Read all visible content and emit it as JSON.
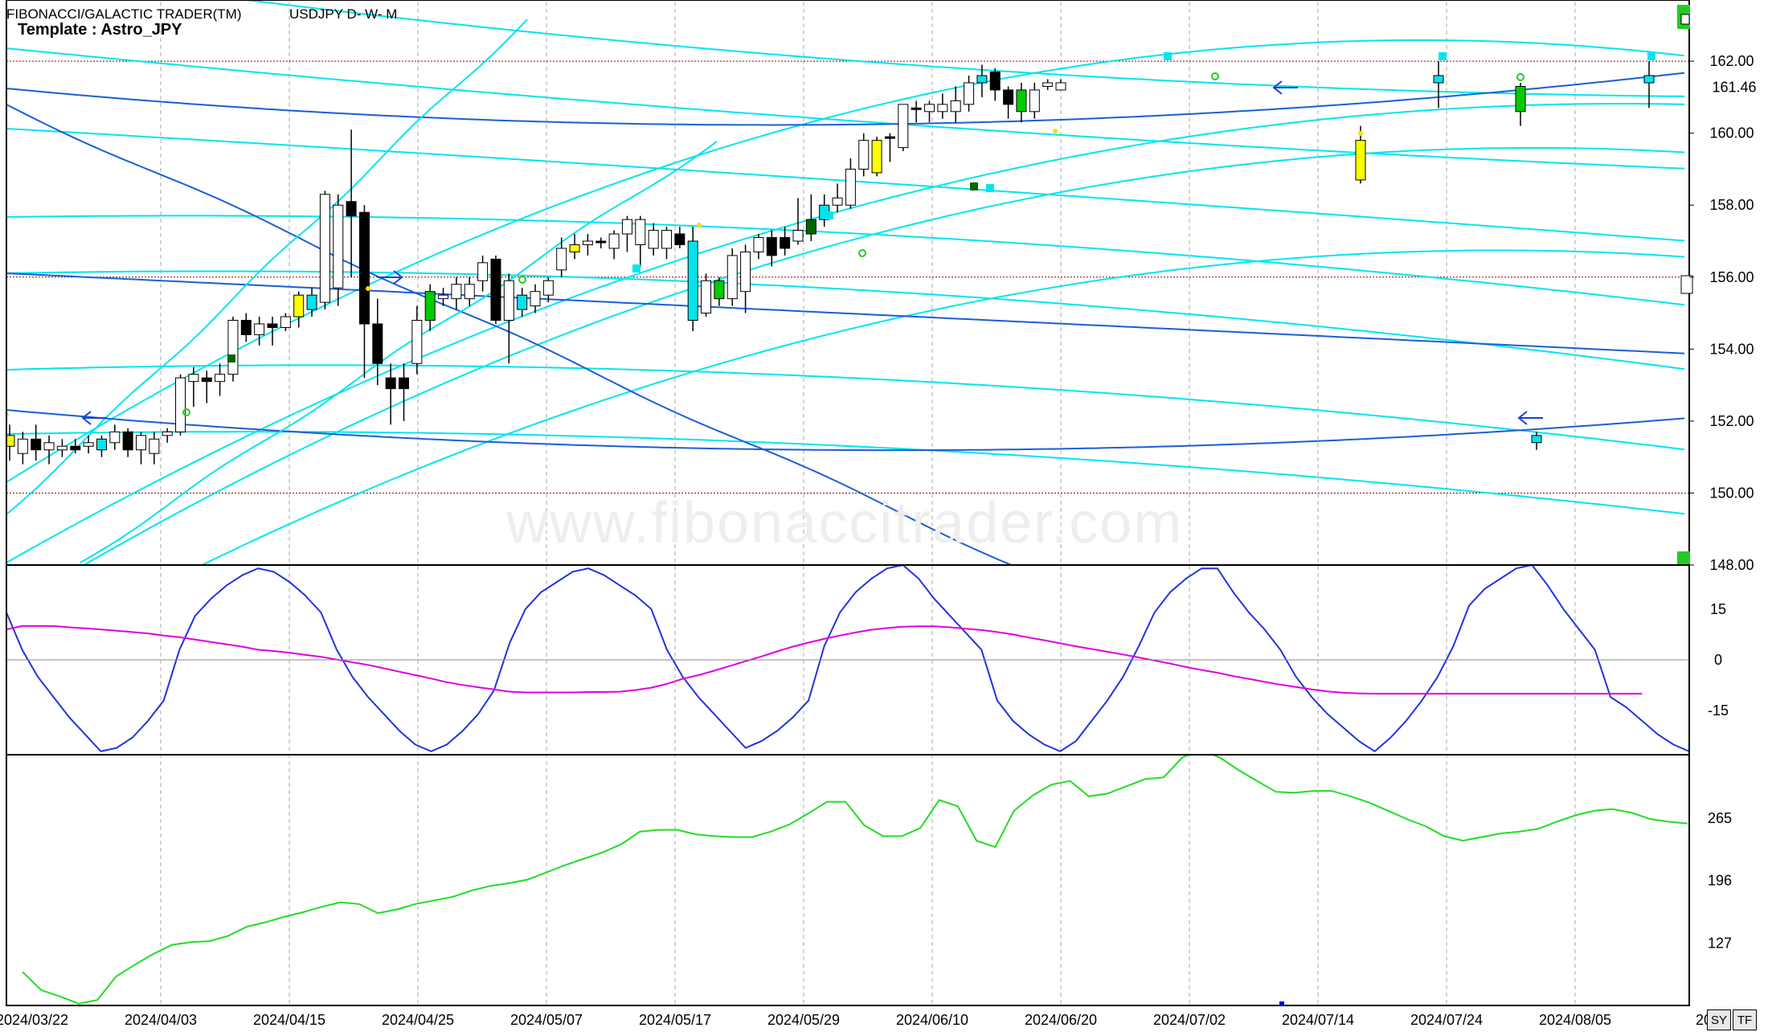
{
  "header": {
    "title": "FIBONACCI/GALACTIC TRADER(TM)",
    "symbol": "USDJPY D- W- M",
    "template": "Template : Astro_JPY"
  },
  "watermark": "www.fibonaccitrader.com",
  "buttons": {
    "sy": "SY",
    "tf": "TF"
  },
  "colors": {
    "bull_body": "#ffffff",
    "bear_body": "#000000",
    "highlight_yellow": "#ffff00",
    "highlight_cyan": "#00e5ee",
    "highlight_green": "#00cc00",
    "highlight_blue": "#1e6fe0",
    "band_light": "#00e5ee",
    "band_dark": "#1a5fd6",
    "osc_blue": "#2233dd",
    "osc_magenta": "#e000e0",
    "lower_green": "#22dd22",
    "ref_line": "#8b0000"
  },
  "chart_data": [
    {
      "type": "candlestick",
      "panel": "price",
      "y_ticks": [
        "148.00",
        "150.00",
        "152.00",
        "154.00",
        "156.00",
        "158.00",
        "160.00",
        "162.00"
      ],
      "ylim": [
        148,
        163.7
      ],
      "last_price_label": "161.46",
      "reference_lines": [
        162.0,
        156.0,
        150.0
      ],
      "x_ticks": [
        "2024/03/22",
        "2024/04/03",
        "2024/04/15",
        "2024/04/25",
        "2024/05/07",
        "2024/05/17",
        "2024/05/29",
        "2024/06/10",
        "2024/06/20",
        "2024/07/02",
        "2024/07/14",
        "2024/07/24",
        "2024/08/05",
        "20"
      ],
      "candles": [
        {
          "o": 151.3,
          "h": 151.9,
          "l": 150.9,
          "c": 151.6,
          "k": "y"
        },
        {
          "o": 151.1,
          "h": 151.7,
          "l": 150.8,
          "c": 151.5,
          "k": "w"
        },
        {
          "o": 151.5,
          "h": 151.9,
          "l": 150.9,
          "c": 151.2,
          "k": "b"
        },
        {
          "o": 151.2,
          "h": 151.6,
          "l": 150.8,
          "c": 151.4,
          "k": "w"
        },
        {
          "o": 151.2,
          "h": 151.5,
          "l": 151.0,
          "c": 151.3,
          "k": "w"
        },
        {
          "o": 151.3,
          "h": 151.5,
          "l": 151.1,
          "c": 151.2,
          "k": "b"
        },
        {
          "o": 151.3,
          "h": 151.6,
          "l": 151.1,
          "c": 151.4,
          "k": "w"
        },
        {
          "o": 151.2,
          "h": 151.6,
          "l": 151.0,
          "c": 151.5,
          "k": "u"
        },
        {
          "o": 151.4,
          "h": 151.9,
          "l": 151.2,
          "c": 151.7,
          "k": "w"
        },
        {
          "o": 151.7,
          "h": 151.8,
          "l": 151.0,
          "c": 151.2,
          "k": "b"
        },
        {
          "o": 151.2,
          "h": 151.7,
          "l": 150.8,
          "c": 151.6,
          "k": "w"
        },
        {
          "o": 151.1,
          "h": 151.7,
          "l": 150.8,
          "c": 151.5,
          "k": "w"
        },
        {
          "o": 151.6,
          "h": 151.8,
          "l": 151.4,
          "c": 151.7,
          "k": "w"
        },
        {
          "o": 151.7,
          "h": 153.3,
          "l": 151.6,
          "c": 153.2,
          "k": "w"
        },
        {
          "o": 153.1,
          "h": 153.5,
          "l": 152.4,
          "c": 153.3,
          "k": "w"
        },
        {
          "o": 153.2,
          "h": 153.4,
          "l": 152.5,
          "c": 153.1,
          "k": "b"
        },
        {
          "o": 153.1,
          "h": 153.6,
          "l": 152.7,
          "c": 153.3,
          "k": "w"
        },
        {
          "o": 153.3,
          "h": 154.9,
          "l": 153.1,
          "c": 154.8,
          "k": "w"
        },
        {
          "o": 154.8,
          "h": 155.0,
          "l": 154.2,
          "c": 154.4,
          "k": "b"
        },
        {
          "o": 154.4,
          "h": 154.9,
          "l": 154.1,
          "c": 154.7,
          "k": "w"
        },
        {
          "o": 154.7,
          "h": 154.9,
          "l": 154.1,
          "c": 154.6,
          "k": "b"
        },
        {
          "o": 154.6,
          "h": 155.0,
          "l": 154.5,
          "c": 154.9,
          "k": "w"
        },
        {
          "o": 154.9,
          "h": 155.6,
          "l": 154.6,
          "c": 155.5,
          "k": "y"
        },
        {
          "o": 155.1,
          "h": 155.7,
          "l": 154.9,
          "c": 155.5,
          "k": "u"
        },
        {
          "o": 155.3,
          "h": 158.4,
          "l": 155.1,
          "c": 158.3,
          "k": "w"
        },
        {
          "o": 155.7,
          "h": 158.3,
          "l": 155.2,
          "c": 158.0,
          "k": "w"
        },
        {
          "o": 158.1,
          "h": 160.1,
          "l": 156.0,
          "c": 157.7,
          "k": "b"
        },
        {
          "o": 157.8,
          "h": 158.0,
          "l": 153.2,
          "c": 154.7,
          "k": "b"
        },
        {
          "o": 154.7,
          "h": 155.4,
          "l": 153.0,
          "c": 153.6,
          "k": "b"
        },
        {
          "o": 153.2,
          "h": 153.6,
          "l": 151.9,
          "c": 152.9,
          "k": "b"
        },
        {
          "o": 153.2,
          "h": 153.6,
          "l": 152.0,
          "c": 152.9,
          "k": "b"
        },
        {
          "o": 153.6,
          "h": 155.2,
          "l": 153.3,
          "c": 154.8,
          "k": "w"
        },
        {
          "o": 154.8,
          "h": 155.8,
          "l": 154.5,
          "c": 155.6,
          "k": "g"
        },
        {
          "o": 155.4,
          "h": 155.7,
          "l": 155.2,
          "c": 155.5,
          "k": "w"
        },
        {
          "o": 155.4,
          "h": 156.0,
          "l": 155.1,
          "c": 155.8,
          "k": "w"
        },
        {
          "o": 155.4,
          "h": 156.0,
          "l": 155.2,
          "c": 155.8,
          "k": "w"
        },
        {
          "o": 155.9,
          "h": 156.6,
          "l": 155.6,
          "c": 156.4,
          "k": "w"
        },
        {
          "o": 156.5,
          "h": 156.6,
          "l": 154.7,
          "c": 154.8,
          "k": "b"
        },
        {
          "o": 154.8,
          "h": 156.1,
          "l": 153.6,
          "c": 155.9,
          "k": "w"
        },
        {
          "o": 155.1,
          "h": 155.7,
          "l": 154.9,
          "c": 155.5,
          "k": "u"
        },
        {
          "o": 155.2,
          "h": 155.8,
          "l": 155.0,
          "c": 155.6,
          "k": "w"
        },
        {
          "o": 155.5,
          "h": 156.0,
          "l": 155.3,
          "c": 155.9,
          "k": "w"
        },
        {
          "o": 156.2,
          "h": 157.1,
          "l": 156.0,
          "c": 156.8,
          "k": "w"
        },
        {
          "o": 156.7,
          "h": 157.2,
          "l": 156.5,
          "c": 156.9,
          "k": "y"
        },
        {
          "o": 156.9,
          "h": 157.2,
          "l": 156.6,
          "c": 157.0,
          "k": "w"
        },
        {
          "o": 157.0,
          "h": 157.1,
          "l": 156.8,
          "c": 157.0,
          "k": "b"
        },
        {
          "o": 156.8,
          "h": 157.3,
          "l": 156.5,
          "c": 157.2,
          "k": "w"
        },
        {
          "o": 157.2,
          "h": 157.7,
          "l": 156.7,
          "c": 157.6,
          "k": "w"
        },
        {
          "o": 156.9,
          "h": 157.7,
          "l": 156.3,
          "c": 157.6,
          "k": "w"
        },
        {
          "o": 156.8,
          "h": 157.5,
          "l": 156.6,
          "c": 157.3,
          "k": "w"
        },
        {
          "o": 156.8,
          "h": 157.4,
          "l": 156.5,
          "c": 157.3,
          "k": "w"
        },
        {
          "o": 157.2,
          "h": 157.4,
          "l": 156.8,
          "c": 156.9,
          "k": "b"
        },
        {
          "o": 157.0,
          "h": 157.4,
          "l": 154.5,
          "c": 154.8,
          "k": "u"
        },
        {
          "o": 155.0,
          "h": 156.1,
          "l": 154.9,
          "c": 155.9,
          "k": "w"
        },
        {
          "o": 155.4,
          "h": 156.0,
          "l": 155.2,
          "c": 155.9,
          "k": "g"
        },
        {
          "o": 155.4,
          "h": 156.8,
          "l": 155.2,
          "c": 156.6,
          "k": "w"
        },
        {
          "o": 155.6,
          "h": 156.9,
          "l": 155.0,
          "c": 156.7,
          "k": "w"
        },
        {
          "o": 156.7,
          "h": 157.2,
          "l": 156.5,
          "c": 157.1,
          "k": "w"
        },
        {
          "o": 157.1,
          "h": 157.3,
          "l": 156.3,
          "c": 156.6,
          "k": "b"
        },
        {
          "o": 156.8,
          "h": 157.4,
          "l": 156.6,
          "c": 157.1,
          "k": "b"
        },
        {
          "o": 157.0,
          "h": 158.2,
          "l": 156.9,
          "c": 157.3,
          "k": "w"
        },
        {
          "o": 157.2,
          "h": 158.3,
          "l": 157.0,
          "c": 157.6,
          "k": "d"
        },
        {
          "o": 157.6,
          "h": 158.3,
          "l": 157.4,
          "c": 158.0,
          "k": "u"
        },
        {
          "o": 158.0,
          "h": 158.6,
          "l": 157.8,
          "c": 158.2,
          "k": "w"
        },
        {
          "o": 158.0,
          "h": 159.3,
          "l": 157.9,
          "c": 159.0,
          "k": "w"
        },
        {
          "o": 159.0,
          "h": 160.0,
          "l": 158.8,
          "c": 159.8,
          "k": "w"
        },
        {
          "o": 158.9,
          "h": 159.9,
          "l": 158.8,
          "c": 159.8,
          "k": "y"
        },
        {
          "o": 159.9,
          "h": 160.0,
          "l": 159.2,
          "c": 159.9,
          "k": "b"
        },
        {
          "o": 159.6,
          "h": 160.8,
          "l": 159.5,
          "c": 160.8,
          "k": "w"
        },
        {
          "o": 160.7,
          "h": 160.9,
          "l": 160.3,
          "c": 160.7,
          "k": "b"
        },
        {
          "o": 160.6,
          "h": 160.9,
          "l": 160.3,
          "c": 160.8,
          "k": "w"
        },
        {
          "o": 160.6,
          "h": 161.1,
          "l": 160.4,
          "c": 160.8,
          "k": "w"
        },
        {
          "o": 160.6,
          "h": 161.3,
          "l": 160.3,
          "c": 160.9,
          "k": "w"
        },
        {
          "o": 160.8,
          "h": 161.6,
          "l": 160.6,
          "c": 161.4,
          "k": "w"
        },
        {
          "o": 161.4,
          "h": 161.9,
          "l": 161.0,
          "c": 161.6,
          "k": "u"
        },
        {
          "o": 161.7,
          "h": 161.8,
          "l": 160.9,
          "c": 161.2,
          "k": "b"
        },
        {
          "o": 161.2,
          "h": 161.3,
          "l": 160.4,
          "c": 160.8,
          "k": "b"
        },
        {
          "o": 161.2,
          "h": 161.4,
          "l": 160.3,
          "c": 160.6,
          "k": "g"
        },
        {
          "o": 160.6,
          "h": 161.4,
          "l": 160.4,
          "c": 161.2,
          "k": "w"
        },
        {
          "o": 161.3,
          "h": 161.5,
          "l": 161.2,
          "c": 161.4,
          "k": "w"
        },
        {
          "o": 161.2,
          "h": 161.5,
          "l": 161.2,
          "c": 161.4,
          "k": "w"
        },
        {
          "o": 158.7,
          "h": 160.2,
          "l": 158.6,
          "c": 159.8,
          "k": "y",
          "weekly": true
        },
        {
          "o": 161.4,
          "h": 162.0,
          "l": 160.7,
          "c": 161.6,
          "k": "u",
          "weekly": true
        },
        {
          "o": 160.6,
          "h": 161.4,
          "l": 160.2,
          "c": 161.3,
          "k": "g",
          "weekly": true
        },
        {
          "o": 151.4,
          "h": 151.7,
          "l": 151.2,
          "c": 151.6,
          "k": "u",
          "weekly": true
        },
        {
          "o": 161.4,
          "h": 162.0,
          "l": 160.7,
          "c": 161.6,
          "k": "u",
          "weekly": true
        }
      ]
    },
    {
      "type": "line",
      "panel": "oscillator",
      "y_ticks": [
        "15",
        "0",
        "-15"
      ],
      "ylim": [
        -28,
        28
      ],
      "series": [
        {
          "key": "blue",
          "values": [
            14,
            3,
            -5,
            -11,
            -17,
            -22,
            -27,
            -26,
            -23,
            -18,
            -12,
            3,
            13,
            18,
            22,
            25,
            27,
            26,
            23,
            19,
            14,
            3,
            -5,
            -11,
            -16,
            -21,
            -25,
            -27,
            -25,
            -21,
            -16,
            -9,
            5,
            15,
            20,
            23,
            26,
            27,
            25,
            22,
            19,
            15,
            3,
            -5,
            -11,
            -16,
            -21,
            -26,
            -24,
            -21,
            -17,
            -12,
            4,
            14,
            20,
            24,
            27,
            28,
            24,
            18,
            13,
            8,
            3,
            -12,
            -18,
            -22,
            -25,
            -27,
            -24,
            -18,
            -12,
            -5,
            4,
            14,
            20,
            24,
            27,
            27,
            20,
            14,
            9,
            3,
            -5,
            -11,
            -16,
            -20,
            -24,
            -27,
            -23,
            -18,
            -12,
            -5,
            4,
            16,
            21,
            24,
            27,
            28,
            22,
            15,
            9,
            3,
            -11,
            -14,
            -18,
            -22,
            -25,
            -27
          ]
        },
        {
          "key": "magenta",
          "values": [
            9,
            10,
            10,
            10,
            9.6,
            9.3,
            9,
            8.6,
            8.2,
            7.8,
            7.2,
            6.7,
            6,
            5.3,
            4.6,
            3.9,
            3,
            2.6,
            2.1,
            1.5,
            0.9,
            0.1,
            -0.7,
            -1.5,
            -2.5,
            -3.5,
            -4.5,
            -5.5,
            -6.6,
            -7.4,
            -8.1,
            -8.7,
            -9.4,
            -9.6,
            -9.6,
            -9.6,
            -9.6,
            -9.5,
            -9.5,
            -9.4,
            -8.9,
            -8.2,
            -7.1,
            -5.6,
            -4.5,
            -3.2,
            -1.8,
            -0.4,
            1,
            2.5,
            3.9,
            5.1,
            6.2,
            7.2,
            8.1,
            8.9,
            9.4,
            9.8,
            9.9,
            9.9,
            9.6,
            9.2,
            8.8,
            8.2,
            7.5,
            6.6,
            5.8,
            4.9,
            4,
            3.2,
            2.4,
            1.6,
            0.7,
            -0.2,
            -1.1,
            -2.1,
            -3,
            -3.8,
            -4.8,
            -5.6,
            -6.5,
            -7.3,
            -8,
            -8.7,
            -9.3,
            -9.7,
            -9.9,
            -10,
            -10,
            -10,
            -10,
            -10,
            -10,
            -10,
            -10,
            -10,
            -10,
            -10,
            -10,
            -10,
            -10,
            -10,
            -10,
            -10,
            -10
          ]
        }
      ]
    },
    {
      "type": "line",
      "panel": "lower",
      "y_ticks": [
        "265",
        "196",
        "127"
      ],
      "ylim": [
        58,
        335
      ],
      "series": [
        {
          "key": "green",
          "values": [
            95,
            75,
            68,
            60,
            64,
            90,
            103,
            115,
            125,
            128,
            129,
            135,
            145,
            150,
            156,
            161,
            167,
            172,
            170,
            160,
            164,
            170,
            174,
            178,
            185,
            190,
            193,
            197,
            205,
            213,
            220,
            227,
            236,
            250,
            252,
            252,
            247,
            245,
            244,
            244,
            250,
            258,
            270,
            283,
            283,
            257,
            245,
            245,
            254,
            285,
            278,
            240,
            233,
            273,
            290,
            302,
            306,
            289,
            292,
            300,
            308,
            310,
            332,
            340,
            332,
            318,
            306,
            294,
            293,
            295,
            295,
            289,
            282,
            273,
            264,
            256,
            245,
            240,
            244,
            248,
            250,
            253,
            261,
            268,
            273,
            275,
            271,
            264,
            261,
            259
          ]
        }
      ]
    }
  ]
}
